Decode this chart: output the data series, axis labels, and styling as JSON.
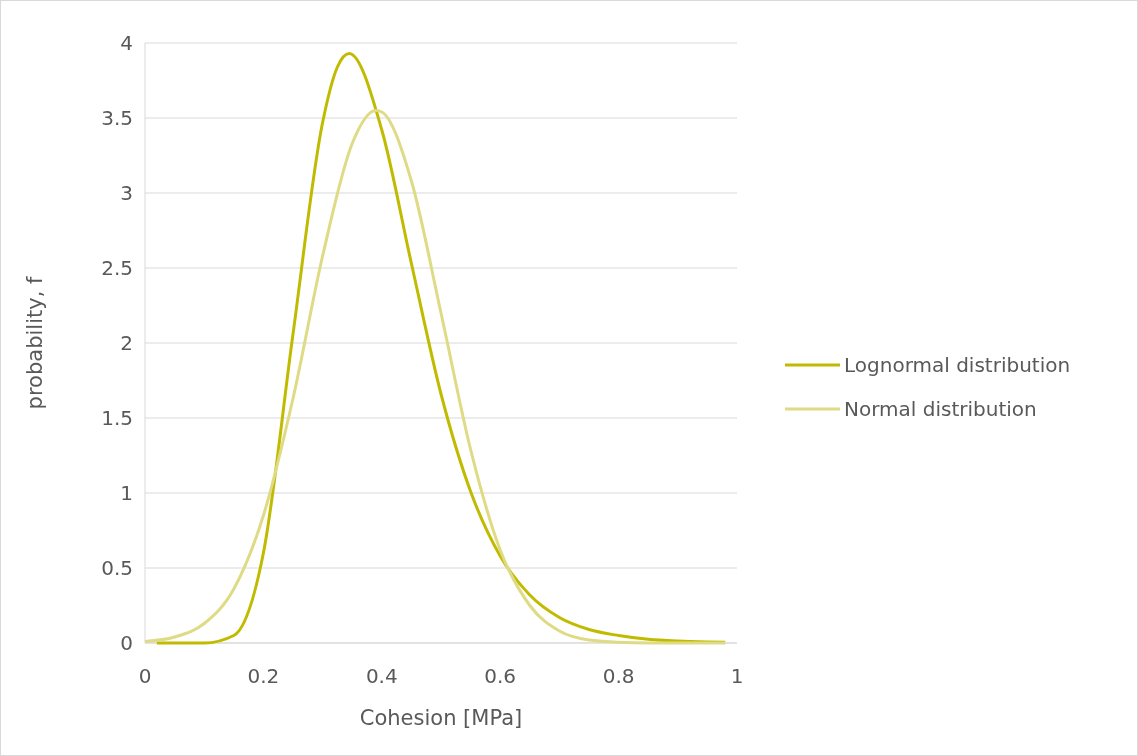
{
  "chart_data": {
    "type": "line",
    "xlabel": "Cohesion [MPa]",
    "ylabel": "probability, f",
    "xlim": [
      0,
      1
    ],
    "xticks": [
      0,
      {
        "value": 0.2,
        "label": "0.2"
      },
      {
        "value": 0.4,
        "label": "0.4"
      },
      {
        "value": 0.6,
        "label": "0.6"
      },
      {
        "value": 0.8,
        "label": "0.8"
      },
      1
    ],
    "ylim": [
      0,
      4
    ],
    "yticks": [
      0,
      0.5,
      1,
      1.5,
      2,
      2.5,
      3,
      3.5,
      4
    ],
    "grid": "y",
    "legend": "right",
    "marker": "none",
    "line_style": "solid",
    "series": [
      {
        "name": "Lognormal distribution",
        "color": "#c0bb00",
        "x": [
          0.02,
          0.05,
          0.1,
          0.15,
          0.2,
          0.25,
          0.3,
          0.325,
          0.345,
          0.4,
          0.45,
          0.5,
          0.55,
          0.6,
          0.65,
          0.7,
          0.75,
          0.8,
          0.85,
          0.9,
          0.95,
          0.98
        ],
        "values": [
          0,
          0,
          0,
          0.05,
          0.6,
          2.06,
          3.47,
          3.84,
          3.93,
          3.42,
          2.53,
          1.66,
          1.01,
          0.58,
          0.32,
          0.17,
          0.09,
          0.05,
          0.025,
          0.013,
          0.007,
          0.005
        ]
      },
      {
        "name": "Normal distribution",
        "color": "#dedb84",
        "x": [
          0,
          0.05,
          0.1,
          0.15,
          0.2,
          0.25,
          0.3,
          0.35,
          0.39,
          0.4,
          0.45,
          0.5,
          0.55,
          0.6,
          0.65,
          0.7,
          0.75,
          0.8,
          0.85,
          0.9,
          0.98
        ],
        "values": [
          0.01,
          0.04,
          0.13,
          0.36,
          0.85,
          1.63,
          2.58,
          3.33,
          3.55,
          3.54,
          3.08,
          2.2,
          1.29,
          0.62,
          0.25,
          0.08,
          0.02,
          0.005,
          0,
          0,
          0
        ]
      }
    ]
  }
}
